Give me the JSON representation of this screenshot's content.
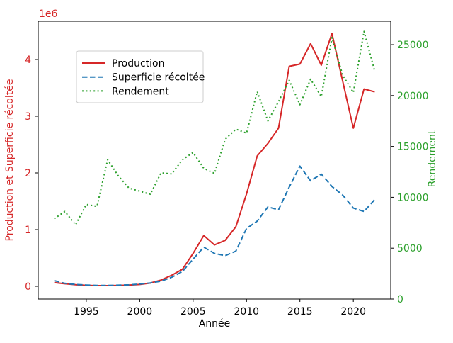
{
  "figure": {
    "xlabel": "Année",
    "ylabel_left": "Production et Superficie récoltée",
    "ylabel_right": "Rendement",
    "offset_text": "1e6"
  },
  "colors": {
    "production": "#d62728",
    "superficie": "#1f77b4",
    "rendement": "#2ca02c",
    "axis_line": "#000000",
    "tick_label_left": "#d62728",
    "tick_label_right": "#2ca02c",
    "tick_label_x": "#000000",
    "legend_border": "#cccccc",
    "legend_text": "#000000",
    "background": "#ffffff"
  },
  "chart_data": {
    "type": "line",
    "title": "",
    "xlabel": "Année",
    "grid": false,
    "legend_position": "upper left",
    "x": [
      1992,
      1993,
      1994,
      1995,
      1996,
      1997,
      1998,
      1999,
      2000,
      2001,
      2002,
      2003,
      2004,
      2005,
      2006,
      2007,
      2008,
      2009,
      2010,
      2011,
      2012,
      2013,
      2014,
      2015,
      2016,
      2017,
      2018,
      2019,
      2020,
      2021,
      2022
    ],
    "xlim": [
      1990.5,
      2023.5
    ],
    "x_ticks": [
      1995,
      2000,
      2005,
      2010,
      2015,
      2020
    ],
    "left_axis": {
      "label": "Production et Superficie récoltée",
      "offset_text": "1e6",
      "tick_labels": [
        "0",
        "1",
        "2",
        "3",
        "4"
      ],
      "tick_values": [
        0,
        1000000,
        2000000,
        3000000,
        4000000
      ],
      "lim": [
        -225000,
        4675000
      ],
      "color": "#d62728"
    },
    "right_axis": {
      "label": "Rendement",
      "tick_labels": [
        "0",
        "5000",
        "10000",
        "15000",
        "20000",
        "25000"
      ],
      "tick_values": [
        0,
        5000,
        10000,
        15000,
        20000,
        25000
      ],
      "lim": [
        0,
        27300
      ],
      "color": "#2ca02c"
    },
    "series": [
      {
        "name": "Production",
        "axis": "left",
        "color": "#d62728",
        "style": "solid",
        "values": [
          65000,
          45000,
          27000,
          18000,
          13000,
          13000,
          16000,
          22000,
          33000,
          58000,
          110000,
          195000,
          300000,
          580000,
          895000,
          730000,
          810000,
          1050000,
          1630000,
          2300000,
          2520000,
          2790000,
          3880000,
          3920000,
          4280000,
          3900000,
          4460000,
          3620000,
          2790000,
          3480000,
          3430000
        ]
      },
      {
        "name": "Superficie récoltée",
        "axis": "left",
        "color": "#1f77b4",
        "style": "dashed",
        "values": [
          100000,
          52000,
          32000,
          22000,
          15000,
          15000,
          20000,
          26000,
          40000,
          60000,
          90000,
          160000,
          260000,
          480000,
          690000,
          580000,
          540000,
          620000,
          1020000,
          1150000,
          1400000,
          1350000,
          1750000,
          2120000,
          1860000,
          1980000,
          1760000,
          1610000,
          1380000,
          1320000,
          1530000
        ]
      },
      {
        "name": "Rendement",
        "axis": "right",
        "color": "#2ca02c",
        "style": "dotted",
        "values": [
          7900,
          8600,
          7300,
          9300,
          9100,
          13700,
          12100,
          10900,
          10600,
          10300,
          12400,
          12300,
          13700,
          14400,
          12850,
          12350,
          15700,
          16700,
          16300,
          20400,
          17500,
          19400,
          21500,
          19100,
          21600,
          19900,
          25700,
          22000,
          20300,
          26300,
          22400
        ]
      }
    ]
  }
}
